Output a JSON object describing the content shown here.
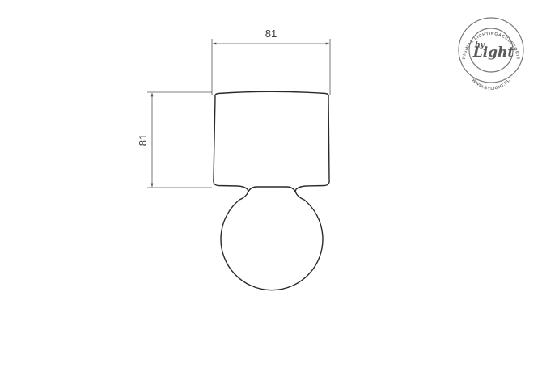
{
  "dimensions": {
    "width_label": "81",
    "height_label": "81"
  },
  "logo": {
    "brand_small": "by",
    "brand_script": "Light",
    "ring_top": "ORIGINAL LIGHTINGACCESSORIES",
    "ring_bottom": "WWW.BYLIGHT.PL"
  }
}
